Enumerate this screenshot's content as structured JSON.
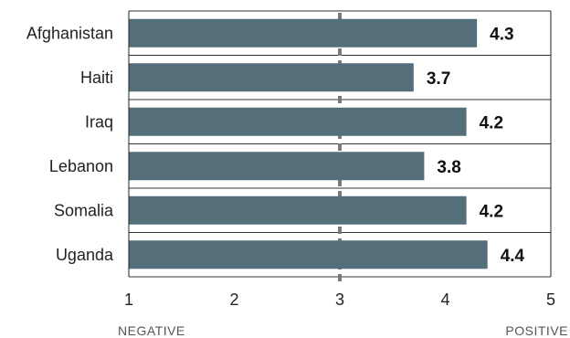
{
  "chart_data": {
    "type": "bar",
    "orientation": "horizontal",
    "categories": [
      "Afghanistan",
      "Haiti",
      "Iraq",
      "Lebanon",
      "Somalia",
      "Uganda"
    ],
    "values": [
      4.3,
      3.7,
      4.2,
      3.8,
      4.2,
      4.4
    ],
    "value_labels": [
      "4.3",
      "3.7",
      "4.2",
      "3.8",
      "4.2",
      "4.4"
    ],
    "xlim": [
      1,
      5
    ],
    "x_ticks": [
      "1",
      "2",
      "3",
      "4",
      "5"
    ],
    "midpoint": 3,
    "axis_end_labels": {
      "left": "NEGATIVE",
      "right": "POSITIVE"
    },
    "bar_color": "#546e7a",
    "gridlines": "horizontal separators",
    "title": "",
    "xlabel": "",
    "ylabel": ""
  }
}
